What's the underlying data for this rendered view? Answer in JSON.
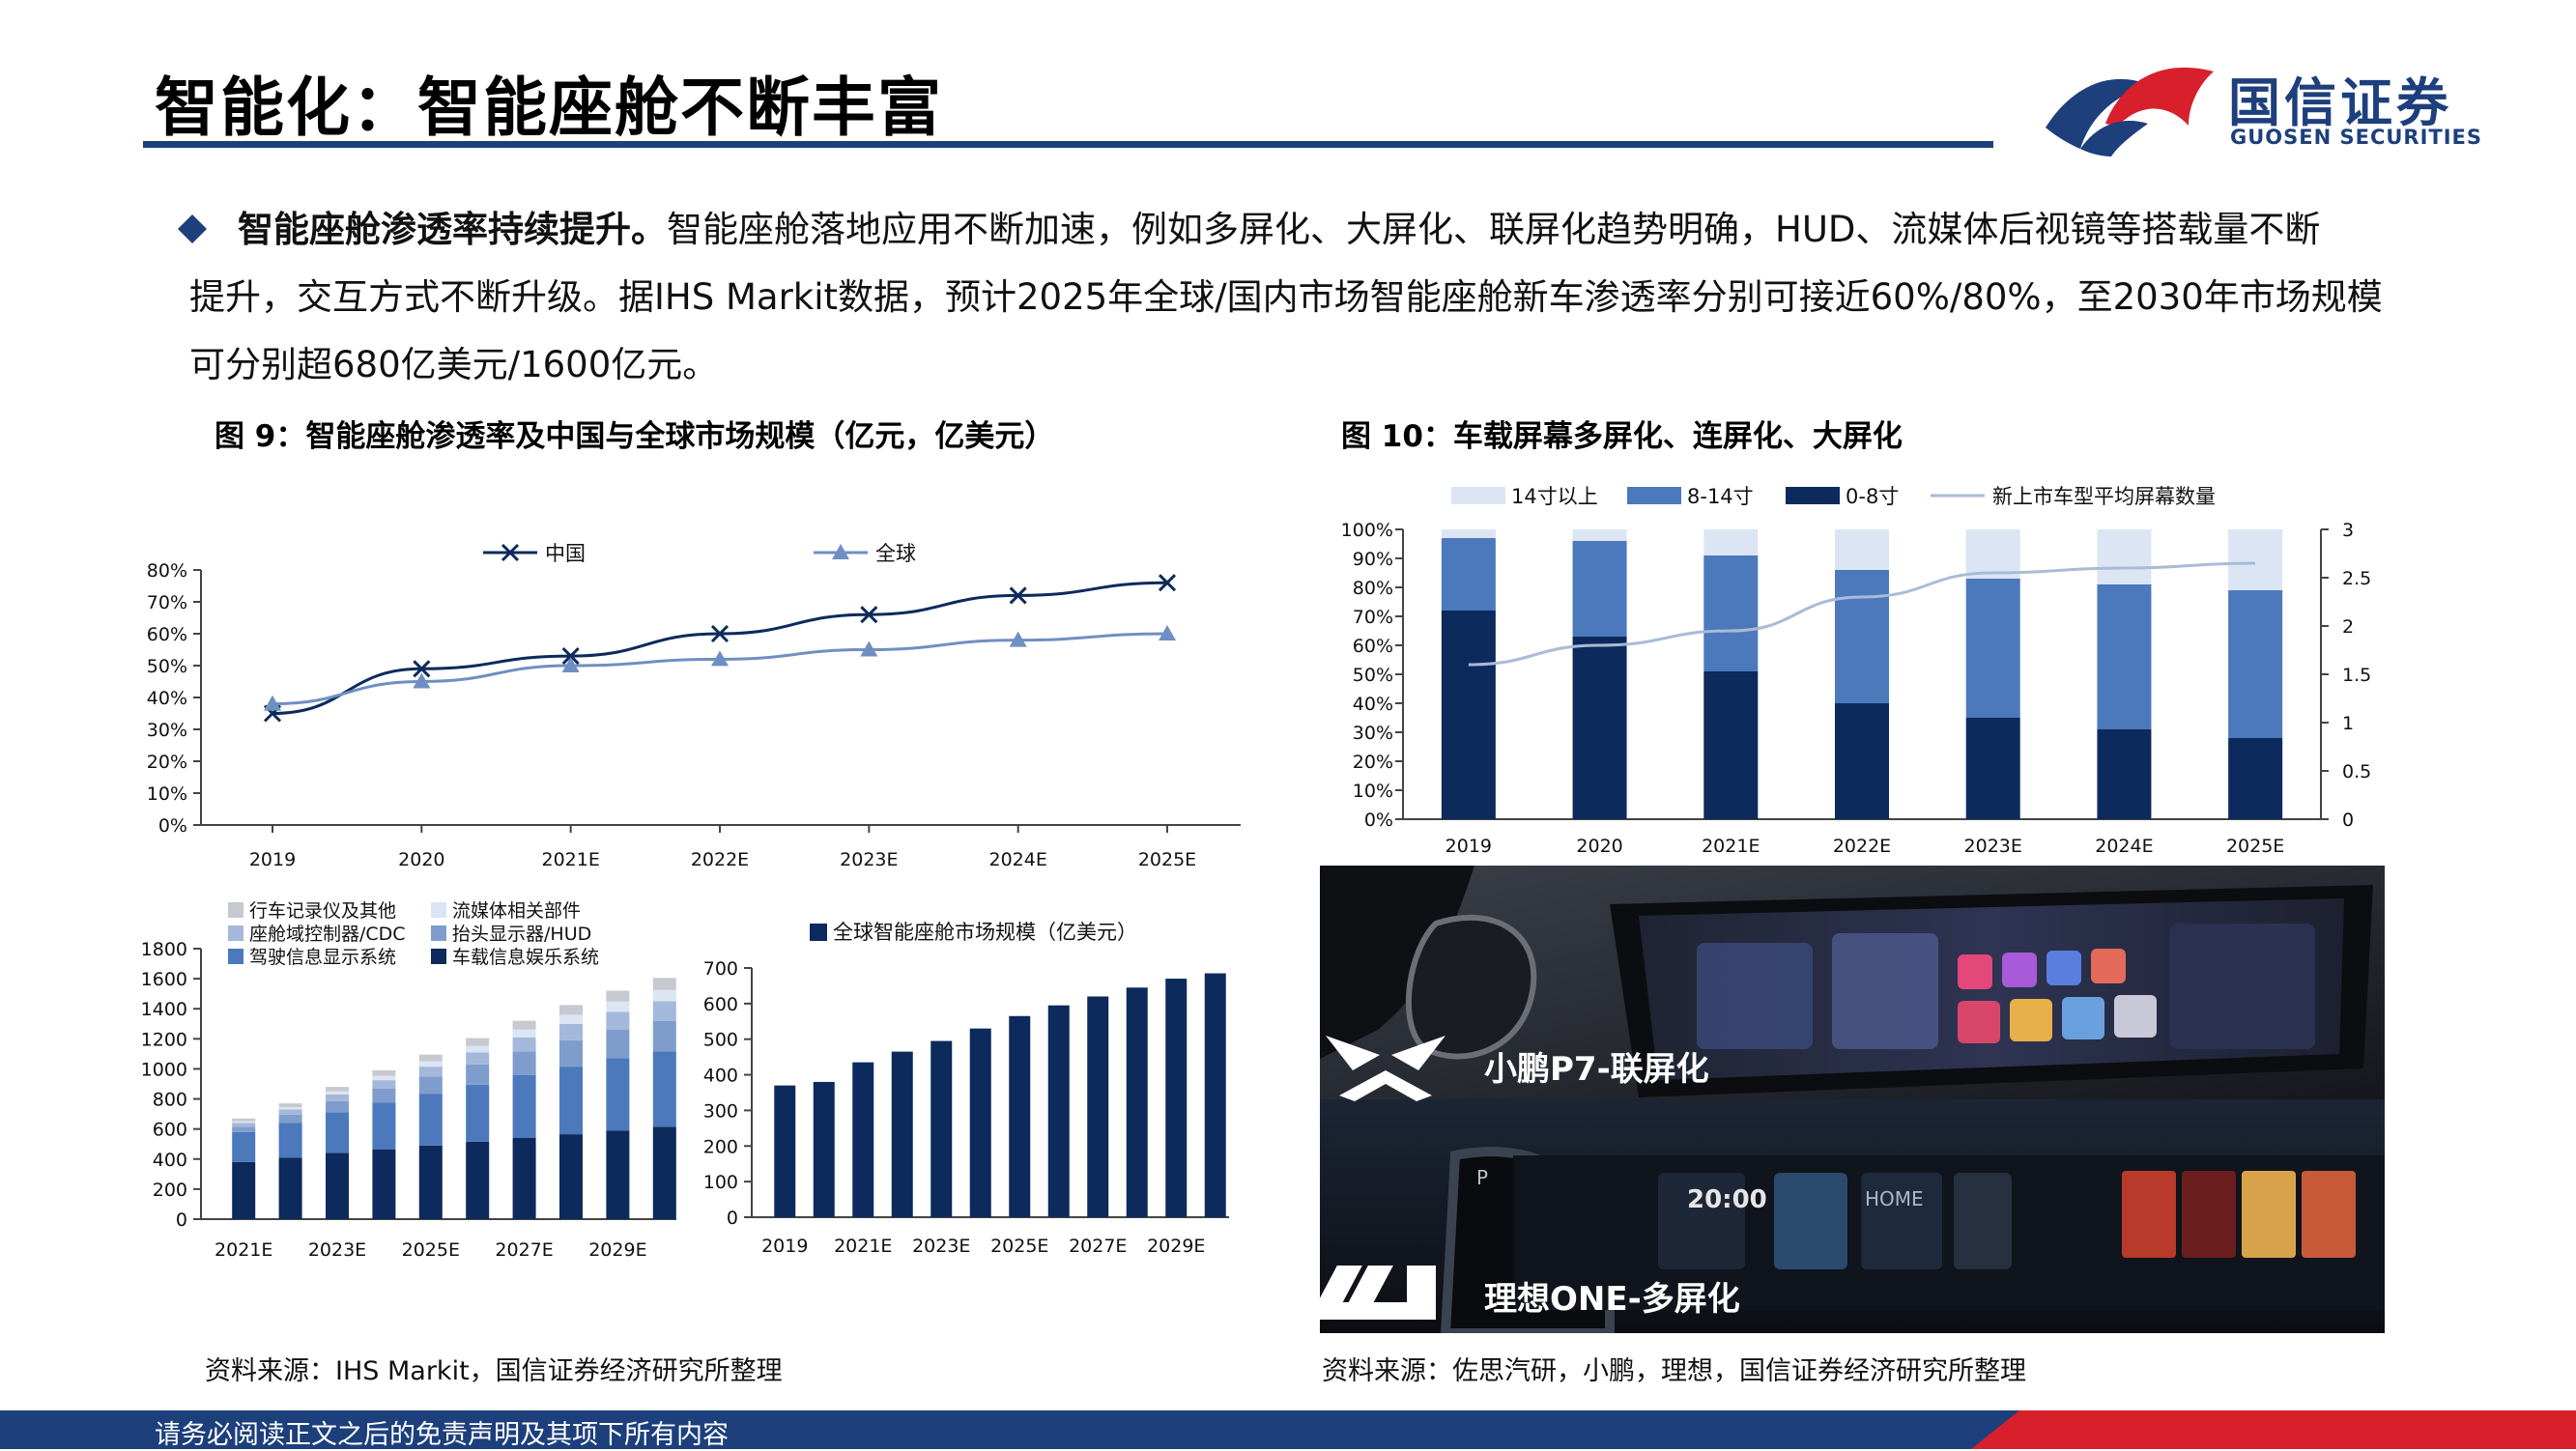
{
  "header": {
    "title": "智能化：智能座舱不断丰富",
    "logo_cn": "国信证券",
    "logo_en": "GUOSEN SECURITIES"
  },
  "body_text": {
    "lead": "智能座舱渗透率持续提升。",
    "line1": "智能座舱落地应用不断加速，例如多屏化、大屏化、联屏化趋势明确，HUD、流媒体后视镜等搭载量不断",
    "line2": "提升，交互方式不断升级。据IHS Markit数据，预计2025年全球/国内市场智能座舱新车渗透率分别可接近60%/80%，至2030年市场规模",
    "line3": "可分别超680亿美元/1600亿元。"
  },
  "figures": {
    "fig9_title": "图 9：智能座舱渗透率及中国与全球市场规模（亿元，亿美元）",
    "fig10_title": "图 10：车载屏幕多屏化、连屏化、大屏化"
  },
  "photo": {
    "caption_top": "小鹏P7-联屏化",
    "caption_bottom": "理想ONE-多屏化",
    "clock": "20:00",
    "gear": "P",
    "home_label": "HOME"
  },
  "sources": {
    "left": "资料来源：IHS Markit，国信证券经济研究所整理",
    "right": "资料来源：佐思汽研，小鹏，理想，国信证券经济研究所整理"
  },
  "footer": {
    "disclaimer": "请务必阅读正文之后的免责声明及其项下所有内容"
  },
  "colors": {
    "navy": "#1d3f7c",
    "red": "#d8202c",
    "dark_navy": "#0d2a5c",
    "mid_blue": "#4b79bc",
    "light_blue": "#dce5f3",
    "line_gray_blue": "#a9bbd6"
  },
  "chart_data": [
    {
      "type": "line",
      "id": "penetration",
      "categories": [
        "2019",
        "2020",
        "2021E",
        "2022E",
        "2023E",
        "2024E",
        "2025E"
      ],
      "y_ticks": [
        "0%",
        "10%",
        "20%",
        "30%",
        "40%",
        "50%",
        "60%",
        "70%",
        "80%"
      ],
      "ylim": [
        0,
        80
      ],
      "legend_placement": "top",
      "series": [
        {
          "name": "中国",
          "marker": "x",
          "values": [
            35,
            49,
            53,
            60,
            66,
            72,
            76
          ]
        },
        {
          "name": "全球",
          "marker": "triangle",
          "values": [
            38,
            45,
            50,
            52,
            55,
            58,
            60
          ]
        }
      ]
    },
    {
      "type": "bar",
      "stacked": true,
      "id": "china-market",
      "categories": [
        "2021E",
        "2022E",
        "2023E",
        "2024E",
        "2025E",
        "2026E",
        "2027E",
        "2028E",
        "2029E",
        "2030E"
      ],
      "x_tick_labels": [
        "2021E",
        "",
        "2023E",
        "",
        "2025E",
        "",
        "2027E",
        "",
        "2029E",
        ""
      ],
      "y_ticks": [
        "0",
        "200",
        "400",
        "600",
        "800",
        "1000",
        "1200",
        "1400",
        "1600",
        "1800"
      ],
      "ylim": [
        0,
        1800
      ],
      "legend_placement": "top",
      "series": [
        {
          "name": "车载信息娱乐系统",
          "values": [
            380,
            410,
            440,
            465,
            490,
            515,
            540,
            565,
            590,
            615
          ]
        },
        {
          "name": "驾驶信息显示系统",
          "values": [
            200,
            230,
            270,
            310,
            345,
            380,
            420,
            450,
            480,
            500
          ]
        },
        {
          "name": "抬头显示器/HUD",
          "values": [
            35,
            55,
            75,
            95,
            115,
            135,
            155,
            175,
            190,
            205
          ]
        },
        {
          "name": "座舱域控制器/CDC",
          "values": [
            25,
            35,
            45,
            55,
            65,
            80,
            95,
            110,
            120,
            130
          ]
        },
        {
          "name": "流媒体相关部件",
          "values": [
            10,
            15,
            20,
            28,
            36,
            44,
            52,
            60,
            68,
            75
          ]
        },
        {
          "name": "行车记录仪及其他",
          "values": [
            20,
            25,
            30,
            37,
            44,
            51,
            58,
            65,
            72,
            80
          ]
        }
      ]
    },
    {
      "type": "bar",
      "id": "global-market",
      "categories": [
        "2019",
        "2020",
        "2021E",
        "2022E",
        "2023E",
        "2024E",
        "2025E",
        "2026E",
        "2027E",
        "2028E",
        "2029E",
        "2030E"
      ],
      "x_tick_labels": [
        "2019",
        "",
        "2021E",
        "",
        "2023E",
        "",
        "2025E",
        "",
        "2027E",
        "",
        "2029E",
        ""
      ],
      "y_ticks": [
        "0",
        "100",
        "200",
        "300",
        "400",
        "500",
        "600",
        "700"
      ],
      "ylim": [
        0,
        700
      ],
      "legend_placement": "top",
      "series": [
        {
          "name": "全球智能座舱市场规模（亿美元）",
          "values": [
            370,
            380,
            435,
            465,
            495,
            530,
            565,
            595,
            620,
            645,
            670,
            685
          ]
        }
      ]
    },
    {
      "type": "bar",
      "stacked": true,
      "id": "screen-size",
      "categories": [
        "2019",
        "2020",
        "2021E",
        "2022E",
        "2023E",
        "2024E",
        "2025E"
      ],
      "y_ticks": [
        "0%",
        "10%",
        "20%",
        "30%",
        "40%",
        "50%",
        "60%",
        "70%",
        "80%",
        "90%",
        "100%"
      ],
      "y2_ticks": [
        "0",
        "0.5",
        "1",
        "1.5",
        "2",
        "2.5",
        "3"
      ],
      "ylim": [
        0,
        100
      ],
      "y2lim": [
        0,
        3
      ],
      "legend_placement": "top",
      "series": [
        {
          "name": "0-8寸",
          "values": [
            72,
            63,
            51,
            40,
            35,
            31,
            28
          ]
        },
        {
          "name": "8-14寸",
          "values": [
            25,
            33,
            40,
            46,
            48,
            50,
            51
          ]
        },
        {
          "name": "14寸以上",
          "values": [
            3,
            4,
            9,
            14,
            17,
            19,
            21
          ]
        }
      ],
      "line_series": {
        "name": "新上市车型平均屏幕数量",
        "axis": "y2",
        "values": [
          1.6,
          1.8,
          1.95,
          2.3,
          2.55,
          2.6,
          2.65
        ]
      }
    }
  ]
}
